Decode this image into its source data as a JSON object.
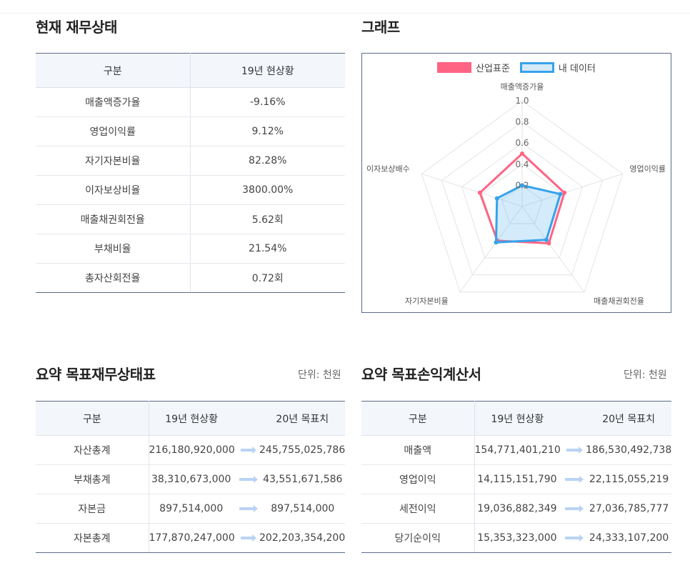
{
  "current": {
    "title": "현재 재무상태",
    "headers": [
      "구분",
      "19년 현상황"
    ],
    "rows": [
      {
        "label": "매출액증가율",
        "value": "-9.16%"
      },
      {
        "label": "영업이익률",
        "value": "9.12%"
      },
      {
        "label": "자기자본비율",
        "value": "82.28%"
      },
      {
        "label": "이자보상비율",
        "value": "3800.00%"
      },
      {
        "label": "매출채권회전율",
        "value": "5.62회"
      },
      {
        "label": "부채비율",
        "value": "21.54%"
      },
      {
        "label": "총자산회전율",
        "value": "0.72회"
      }
    ]
  },
  "graph": {
    "title": "그래프"
  },
  "chart_data": {
    "type": "radar",
    "categories": [
      "매출액증가율",
      "영업이익률",
      "매출채권회전율",
      "자기자본비율",
      "이자보상배수"
    ],
    "series": [
      {
        "name": "산업표준",
        "values": [
          0.5,
          0.42,
          0.43,
          0.4,
          0.42
        ],
        "color": "#ff6384"
      },
      {
        "name": "내 데이터",
        "values": [
          0.2,
          0.38,
          0.39,
          0.42,
          0.25
        ],
        "color": "#36a2eb"
      }
    ],
    "ticks": [
      "0.2",
      "0.4",
      "0.6",
      "0.8",
      "1.0"
    ],
    "ylim": [
      0,
      1.0
    ],
    "legend": "top-center",
    "grid": true
  },
  "balance": {
    "title": "요약 목표재무상태표",
    "unit": "단위: 천원",
    "headers": [
      "구분",
      "19년 현상황",
      "20년 목표치"
    ],
    "rows": [
      {
        "label": "자산총계",
        "current": "216,180,920,000",
        "target": "245,755,025,786"
      },
      {
        "label": "부채총계",
        "current": "38,310,673,000",
        "target": "43,551,671,586"
      },
      {
        "label": "자본금",
        "current": "897,514,000",
        "target": "897,514,000"
      },
      {
        "label": "자본총계",
        "current": "177,870,247,000",
        "target": "202,203,354,200"
      }
    ]
  },
  "income": {
    "title": "요약 목표손익계산서",
    "unit": "단위: 천원",
    "headers": [
      "구분",
      "19년 현상황",
      "20년 목표치"
    ],
    "rows": [
      {
        "label": "매출액",
        "current": "154,771,401,210",
        "target": "186,530,492,738"
      },
      {
        "label": "영업이익",
        "current": "14,115,151,790",
        "target": "22,115,055,219"
      },
      {
        "label": "세전이익",
        "current": "19,036,882,349",
        "target": "27,036,785,777"
      },
      {
        "label": "당기순이익",
        "current": "15,353,323,000",
        "target": "24,333,107,200"
      }
    ]
  }
}
